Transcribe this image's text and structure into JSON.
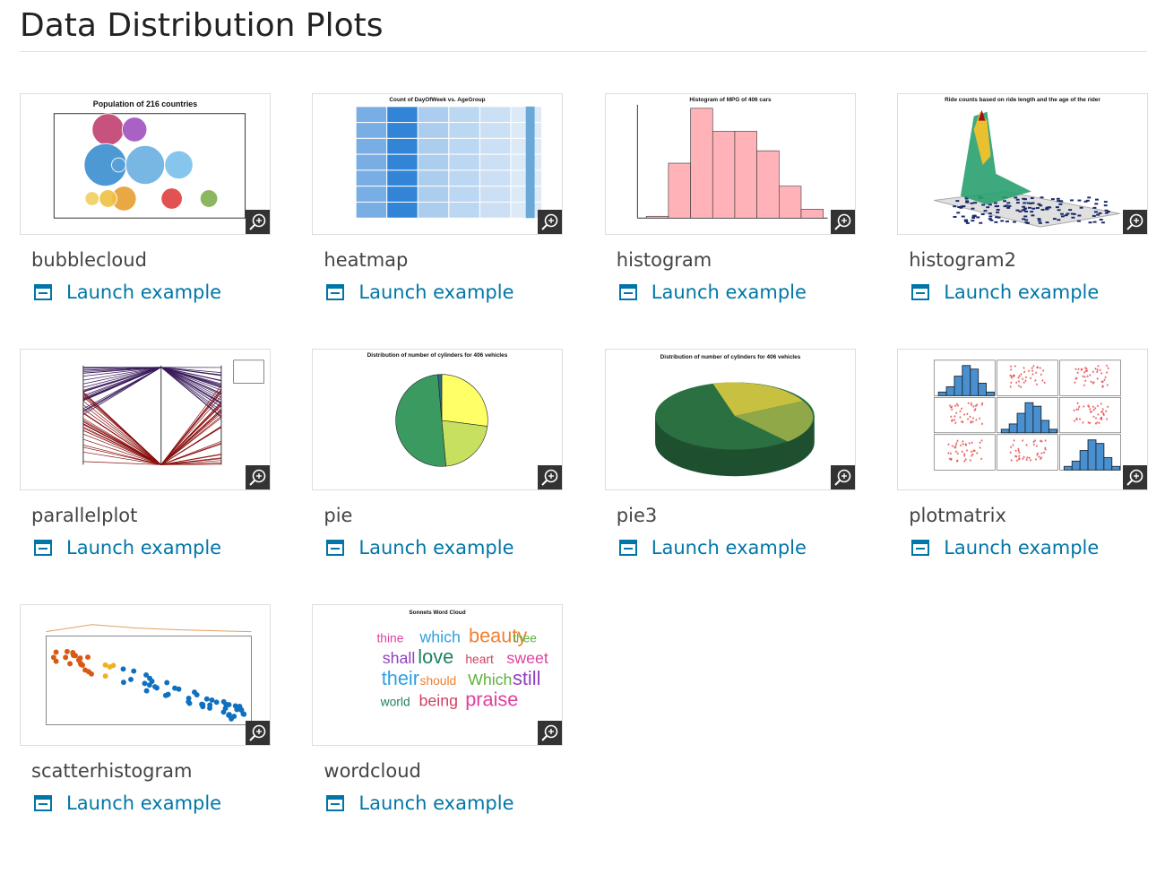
{
  "header": {
    "title": "Data Distribution Plots"
  },
  "cards": [
    {
      "name": "bubblecloud",
      "link": "Launch example",
      "thumbnail_title": "Population of 216 countries"
    },
    {
      "name": "heatmap",
      "link": "Launch example",
      "thumbnail_title": "Count of DayOfWeek vs. AgeGroup"
    },
    {
      "name": "histogram",
      "link": "Launch example",
      "thumbnail_title": "Histogram of MPG of 406 cars"
    },
    {
      "name": "histogram2",
      "link": "Launch example",
      "thumbnail_title": "Ride counts based on ride length and the age of the rider"
    },
    {
      "name": "parallelplot",
      "link": "Launch example"
    },
    {
      "name": "pie",
      "link": "Launch example",
      "thumbnail_title": "Distribution of number of cylinders for 406 vehicles"
    },
    {
      "name": "pie3",
      "link": "Launch example",
      "thumbnail_title": "Distribution of number of cylinders for 406 vehicles"
    },
    {
      "name": "plotmatrix",
      "link": "Launch example"
    },
    {
      "name": "scatterhistogram",
      "link": "Launch example"
    },
    {
      "name": "wordcloud",
      "link": "Launch example",
      "thumbnail_title": "Sonnets Word Cloud",
      "thumbnail_words": [
        "thine",
        "which",
        "beauty",
        "thee",
        "shall",
        "love",
        "heart",
        "sweet",
        "their",
        "should",
        "Which",
        "still",
        "world",
        "being",
        "praise"
      ]
    }
  ]
}
